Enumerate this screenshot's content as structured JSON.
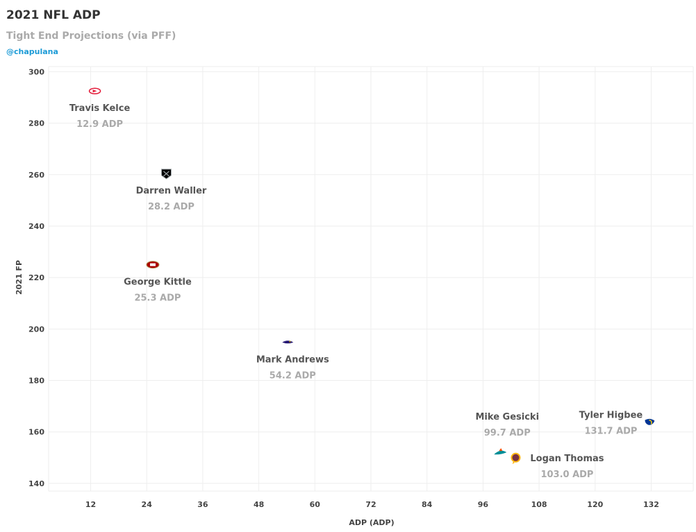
{
  "header": {
    "title": "2021 NFL ADP",
    "subtitle": "Tight End Projections (via PFF)",
    "credit": "@chapulana"
  },
  "colors": {
    "grid": "#eeeeee",
    "credit": "#1a9ad6",
    "name_text": "#555555",
    "adp_text": "#aaaaaa"
  },
  "chart_data": {
    "type": "scatter",
    "xlabel": "ADP (ADP)",
    "ylabel": "2021 FP",
    "xlim": [
      3,
      141
    ],
    "ylim": [
      137,
      302
    ],
    "xticks": [
      12,
      24,
      36,
      48,
      60,
      72,
      84,
      96,
      108,
      120,
      132
    ],
    "yticks": [
      140,
      160,
      180,
      200,
      220,
      240,
      260,
      280,
      300
    ],
    "grid": true,
    "points": [
      {
        "name": "Travis Kelce",
        "adp_label": "12.9 ADP",
        "x": 12.9,
        "y": 292.5,
        "team_icon": "chiefs-logo-icon",
        "color": "#e31837",
        "label_side": "below"
      },
      {
        "name": "Darren Waller",
        "adp_label": "28.2 ADP",
        "x": 28.2,
        "y": 260.5,
        "team_icon": "raiders-logo-icon",
        "color": "#000000",
        "label_side": "below"
      },
      {
        "name": "George Kittle",
        "adp_label": "25.3 ADP",
        "x": 25.3,
        "y": 225.0,
        "team_icon": "49ers-logo-icon",
        "color": "#aa0000",
        "label_side": "below"
      },
      {
        "name": "Mark Andrews",
        "adp_label": "54.2 ADP",
        "x": 54.2,
        "y": 194.8,
        "team_icon": "ravens-logo-icon",
        "color": "#241773",
        "label_side": "below"
      },
      {
        "name": "Mike Gesicki",
        "adp_label": "99.7 ADP",
        "x": 99.7,
        "y": 151.8,
        "team_icon": "dolphins-logo-icon",
        "color": "#008e97",
        "label_side": "above"
      },
      {
        "name": "Logan Thomas",
        "adp_label": "103.0 ADP",
        "x": 103.0,
        "y": 150.0,
        "team_icon": "washington-logo-icon",
        "color": "#773141",
        "label_side": "right"
      },
      {
        "name": "Tyler Higbee",
        "adp_label": "131.7 ADP",
        "x": 131.7,
        "y": 163.8,
        "team_icon": "rams-logo-icon",
        "color": "#003594",
        "label_side": "above-left"
      }
    ]
  }
}
